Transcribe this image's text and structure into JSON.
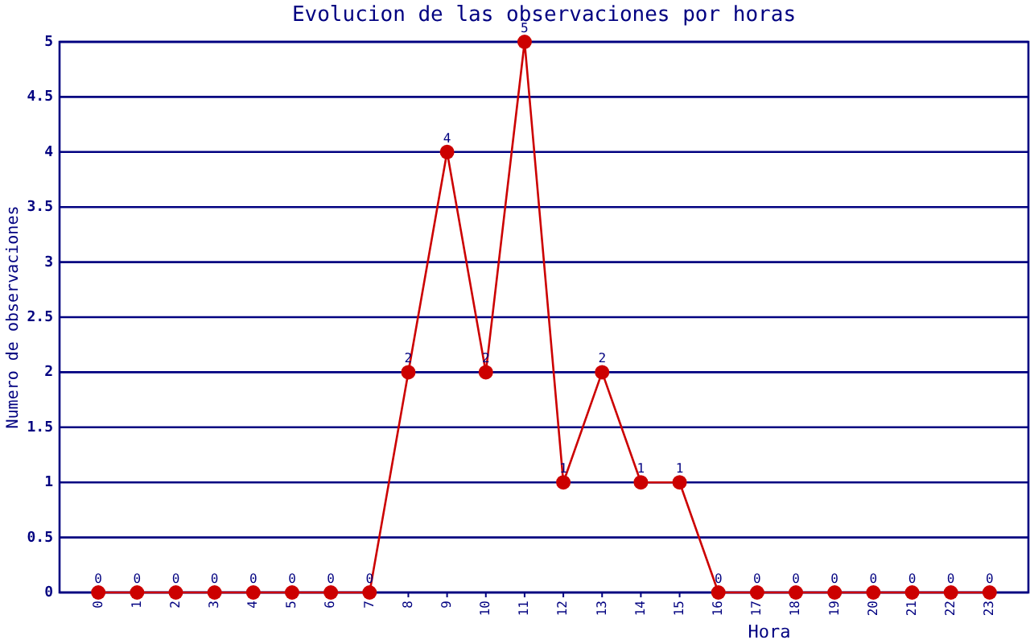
{
  "chart_data": {
    "type": "line",
    "title": "Evolucion de las observaciones por horas",
    "xlabel": "Hora",
    "ylabel": "Numero de observaciones",
    "categories": [
      "0",
      "1",
      "2",
      "3",
      "4",
      "5",
      "6",
      "7",
      "8",
      "9",
      "10",
      "11",
      "12",
      "13",
      "14",
      "15",
      "16",
      "17",
      "18",
      "19",
      "20",
      "21",
      "22",
      "23"
    ],
    "values": [
      0,
      0,
      0,
      0,
      0,
      0,
      0,
      0,
      2,
      4,
      2,
      5,
      1,
      2,
      1,
      1,
      0,
      0,
      0,
      0,
      0,
      0,
      0,
      0
    ],
    "color": "#cc0000",
    "ylim": [
      0,
      5
    ],
    "yticks": [
      0,
      0.5,
      1,
      1.5,
      2,
      2.5,
      3,
      3.5,
      4,
      4.5,
      5
    ],
    "grid": "y",
    "marker": "circle",
    "line_style": "solid",
    "data_labels": true
  }
}
